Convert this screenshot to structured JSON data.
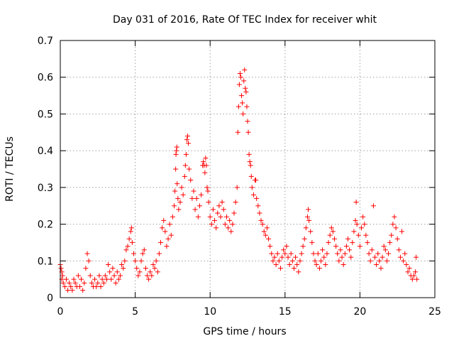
{
  "chart_data": {
    "type": "scatter",
    "title": "Day 031 of 2016, Rate Of TEC Index for receiver whit",
    "xlabel": "GPS time / hours",
    "ylabel": "ROTI / TECUs",
    "xlim": [
      0,
      25
    ],
    "ylim": [
      0,
      0.7
    ],
    "xticks": [
      0,
      5,
      10,
      15,
      20,
      25
    ],
    "yticks": [
      0,
      0.1,
      0.2,
      0.3,
      0.4,
      0.5,
      0.6,
      0.7
    ],
    "xtick_labels": [
      "0",
      "5",
      "10",
      "15",
      "20",
      "25"
    ],
    "ytick_labels": [
      "0",
      "0.1",
      "0.2",
      "0.3",
      "0.4",
      "0.5",
      "0.6",
      "0.7"
    ],
    "grid": true,
    "marker": "+",
    "color": "#ff0000",
    "series": [
      {
        "name": "ROTI",
        "points": [
          [
            0.0,
            0.09
          ],
          [
            0.05,
            0.08
          ],
          [
            0.1,
            0.07
          ],
          [
            0.15,
            0.06
          ],
          [
            0.1,
            0.05
          ],
          [
            0.2,
            0.04
          ],
          [
            0.3,
            0.03
          ],
          [
            0.4,
            0.05
          ],
          [
            0.5,
            0.02
          ],
          [
            0.6,
            0.04
          ],
          [
            0.7,
            0.03
          ],
          [
            0.8,
            0.02
          ],
          [
            0.9,
            0.05
          ],
          [
            1.0,
            0.04
          ],
          [
            1.1,
            0.03
          ],
          [
            1.2,
            0.06
          ],
          [
            1.3,
            0.03
          ],
          [
            1.4,
            0.05
          ],
          [
            1.5,
            0.02
          ],
          [
            1.6,
            0.04
          ],
          [
            1.7,
            0.08
          ],
          [
            1.8,
            0.12
          ],
          [
            1.9,
            0.1
          ],
          [
            2.0,
            0.06
          ],
          [
            2.1,
            0.04
          ],
          [
            2.2,
            0.03
          ],
          [
            2.3,
            0.05
          ],
          [
            2.4,
            0.03
          ],
          [
            2.5,
            0.04
          ],
          [
            2.6,
            0.06
          ],
          [
            2.7,
            0.03
          ],
          [
            2.8,
            0.05
          ],
          [
            2.9,
            0.04
          ],
          [
            3.0,
            0.06
          ],
          [
            3.1,
            0.05
          ],
          [
            3.2,
            0.09
          ],
          [
            3.3,
            0.07
          ],
          [
            3.4,
            0.05
          ],
          [
            3.5,
            0.08
          ],
          [
            3.6,
            0.06
          ],
          [
            3.7,
            0.04
          ],
          [
            3.8,
            0.07
          ],
          [
            3.9,
            0.05
          ],
          [
            4.0,
            0.06
          ],
          [
            4.1,
            0.09
          ],
          [
            4.2,
            0.08
          ],
          [
            4.3,
            0.1
          ],
          [
            4.4,
            0.13
          ],
          [
            4.5,
            0.14
          ],
          [
            4.6,
            0.16
          ],
          [
            4.7,
            0.18
          ],
          [
            4.75,
            0.19
          ],
          [
            4.8,
            0.15
          ],
          [
            4.9,
            0.12
          ],
          [
            5.0,
            0.1
          ],
          [
            5.1,
            0.08
          ],
          [
            5.2,
            0.06
          ],
          [
            5.3,
            0.07
          ],
          [
            5.4,
            0.1
          ],
          [
            5.5,
            0.12
          ],
          [
            5.6,
            0.13
          ],
          [
            5.7,
            0.08
          ],
          [
            5.8,
            0.06
          ],
          [
            5.9,
            0.05
          ],
          [
            6.0,
            0.07
          ],
          [
            6.1,
            0.06
          ],
          [
            6.2,
            0.09
          ],
          [
            6.3,
            0.08
          ],
          [
            6.4,
            0.1
          ],
          [
            6.5,
            0.07
          ],
          [
            6.6,
            0.12
          ],
          [
            6.7,
            0.15
          ],
          [
            6.8,
            0.19
          ],
          [
            6.9,
            0.21
          ],
          [
            7.0,
            0.18
          ],
          [
            7.1,
            0.14
          ],
          [
            7.2,
            0.16
          ],
          [
            7.3,
            0.2
          ],
          [
            7.4,
            0.17
          ],
          [
            7.5,
            0.22
          ],
          [
            7.6,
            0.25
          ],
          [
            7.65,
            0.29
          ],
          [
            7.7,
            0.35
          ],
          [
            7.72,
            0.39
          ],
          [
            7.75,
            0.4
          ],
          [
            7.78,
            0.41
          ],
          [
            7.8,
            0.31
          ],
          [
            7.85,
            0.27
          ],
          [
            7.9,
            0.24
          ],
          [
            8.0,
            0.26
          ],
          [
            8.1,
            0.3
          ],
          [
            8.2,
            0.28
          ],
          [
            8.3,
            0.33
          ],
          [
            8.35,
            0.36
          ],
          [
            8.4,
            0.39
          ],
          [
            8.45,
            0.43
          ],
          [
            8.5,
            0.44
          ],
          [
            8.55,
            0.42
          ],
          [
            8.6,
            0.35
          ],
          [
            8.7,
            0.32
          ],
          [
            8.8,
            0.27
          ],
          [
            8.9,
            0.29
          ],
          [
            9.0,
            0.24
          ],
          [
            9.1,
            0.27
          ],
          [
            9.2,
            0.22
          ],
          [
            9.3,
            0.25
          ],
          [
            9.4,
            0.28
          ],
          [
            9.5,
            0.36
          ],
          [
            9.55,
            0.37
          ],
          [
            9.6,
            0.36
          ],
          [
            9.65,
            0.34
          ],
          [
            9.7,
            0.38
          ],
          [
            9.75,
            0.36
          ],
          [
            9.8,
            0.3
          ],
          [
            9.85,
            0.29
          ],
          [
            9.9,
            0.26
          ],
          [
            10.0,
            0.22
          ],
          [
            10.1,
            0.2
          ],
          [
            10.2,
            0.24
          ],
          [
            10.3,
            0.21
          ],
          [
            10.4,
            0.19
          ],
          [
            10.5,
            0.23
          ],
          [
            10.6,
            0.25
          ],
          [
            10.7,
            0.22
          ],
          [
            10.8,
            0.26
          ],
          [
            10.9,
            0.24
          ],
          [
            11.0,
            0.2
          ],
          [
            11.1,
            0.22
          ],
          [
            11.2,
            0.19
          ],
          [
            11.3,
            0.21
          ],
          [
            11.4,
            0.18
          ],
          [
            11.5,
            0.2
          ],
          [
            11.6,
            0.23
          ],
          [
            11.7,
            0.26
          ],
          [
            11.8,
            0.3
          ],
          [
            11.85,
            0.45
          ],
          [
            11.9,
            0.52
          ],
          [
            11.95,
            0.58
          ],
          [
            12.0,
            0.61
          ],
          [
            12.05,
            0.6
          ],
          [
            12.1,
            0.55
          ],
          [
            12.15,
            0.53
          ],
          [
            12.2,
            0.5
          ],
          [
            12.25,
            0.59
          ],
          [
            12.3,
            0.62
          ],
          [
            12.35,
            0.57
          ],
          [
            12.4,
            0.56
          ],
          [
            12.45,
            0.52
          ],
          [
            12.5,
            0.48
          ],
          [
            12.55,
            0.45
          ],
          [
            12.6,
            0.39
          ],
          [
            12.65,
            0.37
          ],
          [
            12.7,
            0.36
          ],
          [
            12.75,
            0.33
          ],
          [
            12.8,
            0.3
          ],
          [
            12.9,
            0.28
          ],
          [
            13.0,
            0.32
          ],
          [
            13.05,
            0.32
          ],
          [
            13.1,
            0.27
          ],
          [
            13.2,
            0.25
          ],
          [
            13.3,
            0.23
          ],
          [
            13.4,
            0.21
          ],
          [
            13.5,
            0.2
          ],
          [
            13.6,
            0.18
          ],
          [
            13.7,
            0.17
          ],
          [
            13.8,
            0.19
          ],
          [
            13.9,
            0.16
          ],
          [
            14.0,
            0.14
          ],
          [
            14.1,
            0.12
          ],
          [
            14.2,
            0.1
          ],
          [
            14.3,
            0.11
          ],
          [
            14.4,
            0.09
          ],
          [
            14.5,
            0.12
          ],
          [
            14.6,
            0.1
          ],
          [
            14.7,
            0.08
          ],
          [
            14.8,
            0.11
          ],
          [
            14.9,
            0.13
          ],
          [
            15.0,
            0.12
          ],
          [
            15.1,
            0.14
          ],
          [
            15.2,
            0.11
          ],
          [
            15.3,
            0.09
          ],
          [
            15.4,
            0.12
          ],
          [
            15.5,
            0.1
          ],
          [
            15.6,
            0.08
          ],
          [
            15.7,
            0.11
          ],
          [
            15.8,
            0.09
          ],
          [
            15.9,
            0.07
          ],
          [
            16.0,
            0.1
          ],
          [
            16.1,
            0.12
          ],
          [
            16.2,
            0.14
          ],
          [
            16.3,
            0.16
          ],
          [
            16.4,
            0.19
          ],
          [
            16.5,
            0.22
          ],
          [
            16.55,
            0.24
          ],
          [
            16.6,
            0.21
          ],
          [
            16.7,
            0.18
          ],
          [
            16.8,
            0.15
          ],
          [
            16.9,
            0.12
          ],
          [
            17.0,
            0.1
          ],
          [
            17.1,
            0.09
          ],
          [
            17.2,
            0.12
          ],
          [
            17.3,
            0.08
          ],
          [
            17.4,
            0.1
          ],
          [
            17.5,
            0.13
          ],
          [
            17.6,
            0.11
          ],
          [
            17.7,
            0.09
          ],
          [
            17.8,
            0.12
          ],
          [
            17.9,
            0.15
          ],
          [
            18.0,
            0.17
          ],
          [
            18.1,
            0.19
          ],
          [
            18.2,
            0.18
          ],
          [
            18.3,
            0.16
          ],
          [
            18.4,
            0.14
          ],
          [
            18.5,
            0.12
          ],
          [
            18.6,
            0.1
          ],
          [
            18.7,
            0.13
          ],
          [
            18.8,
            0.11
          ],
          [
            18.9,
            0.09
          ],
          [
            19.0,
            0.12
          ],
          [
            19.1,
            0.14
          ],
          [
            19.2,
            0.16
          ],
          [
            19.3,
            0.13
          ],
          [
            19.4,
            0.11
          ],
          [
            19.5,
            0.15
          ],
          [
            19.6,
            0.18
          ],
          [
            19.7,
            0.21
          ],
          [
            19.75,
            0.26
          ],
          [
            19.8,
            0.2
          ],
          [
            19.9,
            0.17
          ],
          [
            20.0,
            0.14
          ],
          [
            20.1,
            0.19
          ],
          [
            20.2,
            0.22
          ],
          [
            20.3,
            0.2
          ],
          [
            20.4,
            0.17
          ],
          [
            20.5,
            0.15
          ],
          [
            20.6,
            0.12
          ],
          [
            20.7,
            0.1
          ],
          [
            20.8,
            0.13
          ],
          [
            20.9,
            0.25
          ],
          [
            21.0,
            0.11
          ],
          [
            21.1,
            0.09
          ],
          [
            21.2,
            0.12
          ],
          [
            21.3,
            0.1
          ],
          [
            21.4,
            0.08
          ],
          [
            21.5,
            0.11
          ],
          [
            21.6,
            0.14
          ],
          [
            21.7,
            0.13
          ],
          [
            21.8,
            0.1
          ],
          [
            21.9,
            0.12
          ],
          [
            22.0,
            0.15
          ],
          [
            22.1,
            0.17
          ],
          [
            22.2,
            0.2
          ],
          [
            22.3,
            0.22
          ],
          [
            22.4,
            0.19
          ],
          [
            22.5,
            0.16
          ],
          [
            22.6,
            0.13
          ],
          [
            22.7,
            0.11
          ],
          [
            22.8,
            0.18
          ],
          [
            22.9,
            0.1
          ],
          [
            23.0,
            0.12
          ],
          [
            23.1,
            0.09
          ],
          [
            23.2,
            0.07
          ],
          [
            23.3,
            0.08
          ],
          [
            23.4,
            0.06
          ],
          [
            23.5,
            0.05
          ],
          [
            23.6,
            0.06
          ],
          [
            23.7,
            0.07
          ],
          [
            23.75,
            0.11
          ],
          [
            23.8,
            0.05
          ]
        ]
      }
    ]
  }
}
